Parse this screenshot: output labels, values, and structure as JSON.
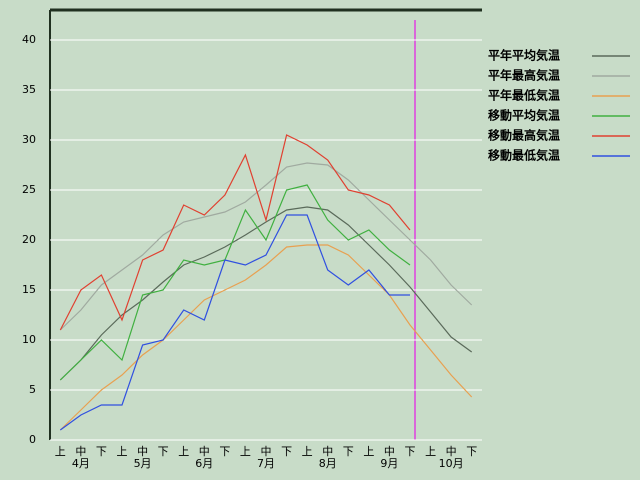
{
  "chart_data": {
    "type": "line",
    "categories": [
      "上",
      "中",
      "下",
      "上",
      "中",
      "下",
      "上",
      "中",
      "下",
      "上",
      "中",
      "下",
      "上",
      "中",
      "下",
      "上",
      "中",
      "下",
      "上",
      "中",
      "下"
    ],
    "months": [
      "4月",
      "5月",
      "6月",
      "7月",
      "8月",
      "9月",
      "10月"
    ],
    "ylim": [
      0,
      43
    ],
    "yticks": [
      0,
      5,
      10,
      15,
      20,
      25,
      30,
      35,
      40
    ],
    "grid": true,
    "series": [
      {
        "name": "平年平均気温",
        "color": "#5a6a5a",
        "values": [
          6,
          8,
          10.5,
          12.5,
          14,
          15.8,
          17.5,
          18.3,
          19.3,
          20.5,
          21.8,
          23,
          23.3,
          23,
          21.5,
          19.5,
          17.5,
          15.3,
          12.8,
          10.3,
          8.8
        ]
      },
      {
        "name": "平年最高気温",
        "color": "#a0aaa0",
        "values": [
          11,
          13,
          15.5,
          17,
          18.5,
          20.5,
          21.8,
          22.3,
          22.8,
          23.8,
          25.5,
          27.3,
          27.7,
          27.5,
          26,
          24,
          22,
          20,
          18,
          15.5,
          13.5
        ]
      },
      {
        "name": "平年最低気温",
        "color": "#e8a050",
        "values": [
          1,
          3,
          5,
          6.5,
          8.5,
          10,
          12,
          14,
          15,
          16,
          17.5,
          19.3,
          19.5,
          19.5,
          18.5,
          16.5,
          14.5,
          11.5,
          9,
          6.5,
          4.3
        ]
      },
      {
        "name": "移動平均気温",
        "color": "#40b040",
        "values": [
          6,
          8,
          10,
          8,
          14.5,
          15,
          18,
          17.5,
          18,
          23,
          20,
          25,
          25.5,
          22,
          20,
          21,
          19,
          17.5,
          null,
          null,
          null
        ]
      },
      {
        "name": "移動最高気温",
        "color": "#e04030",
        "values": [
          11,
          15,
          16.5,
          12,
          18,
          19,
          23.5,
          22.5,
          24.5,
          28.5,
          22,
          30.5,
          29.5,
          28,
          25,
          24.5,
          23.5,
          21,
          null,
          null,
          null
        ]
      },
      {
        "name": "移動最低気温",
        "color": "#3050e0",
        "values": [
          1,
          2.5,
          3.5,
          3.5,
          9.5,
          10,
          13,
          12,
          18,
          17.5,
          18.5,
          22.5,
          22.5,
          17,
          15.5,
          17,
          14.5,
          14.5,
          null,
          null,
          null
        ]
      }
    ]
  }
}
